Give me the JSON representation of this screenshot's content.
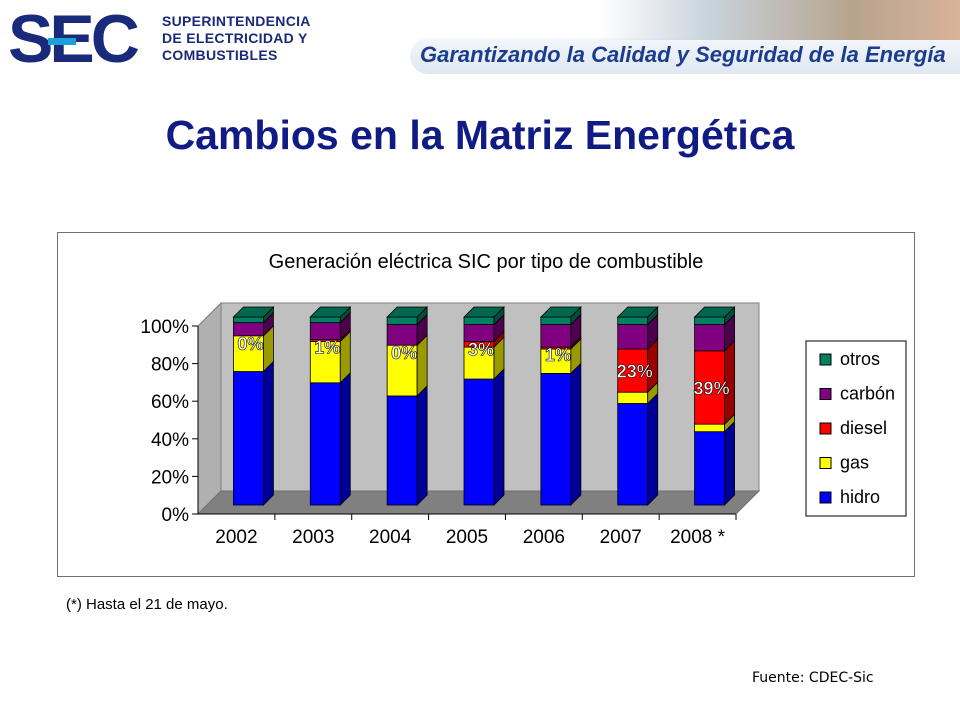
{
  "header": {
    "logo_mark": "SEC",
    "logo_lines": [
      "SUPERINTENDENCIA",
      "DE ELECTRICIDAD Y",
      "COMBUSTIBLES"
    ],
    "slogan": "Garantizando la Calidad y Seguridad de la Energía",
    "colors": {
      "logo_blue": "#1a2a7a",
      "logo_cyan": "#1e9fd8"
    }
  },
  "page": {
    "title": "Cambios en la Matriz Energética",
    "footnote": "(*) Hasta el 21 de mayo.",
    "source": "Fuente: CDEC-Sic"
  },
  "chart_data": {
    "type": "bar",
    "stacked": true,
    "percent": true,
    "title": "Generación eléctrica SIC por tipo de combustible",
    "categories": [
      "2002",
      "2003",
      "2004",
      "2005",
      "2006",
      "2007",
      "2008 *"
    ],
    "series": [
      {
        "name": "hidro",
        "color": "#0000ff",
        "values": [
          71,
          65,
          58,
          67,
          70,
          54,
          39
        ]
      },
      {
        "name": "gas",
        "color": "#ffff00",
        "values": [
          19,
          22,
          27,
          17,
          13,
          6,
          4
        ]
      },
      {
        "name": "diesel",
        "color": "#ff0000",
        "values": [
          0,
          1,
          0,
          3,
          1,
          23,
          39
        ]
      },
      {
        "name": "carbón",
        "color": "#800080",
        "values": [
          7,
          9,
          11,
          9,
          12,
          13,
          14
        ]
      },
      {
        "name": "otros",
        "color": "#008060",
        "values": [
          3,
          3,
          4,
          4,
          4,
          4,
          4
        ]
      }
    ],
    "data_labels": [
      "0%",
      "1%",
      "0%",
      "3%",
      "1%",
      "23%",
      "39%"
    ],
    "y_ticks": [
      "0%",
      "20%",
      "40%",
      "60%",
      "80%",
      "100%"
    ],
    "ylim": [
      0,
      100
    ],
    "grid": false,
    "legend_position": "right"
  }
}
